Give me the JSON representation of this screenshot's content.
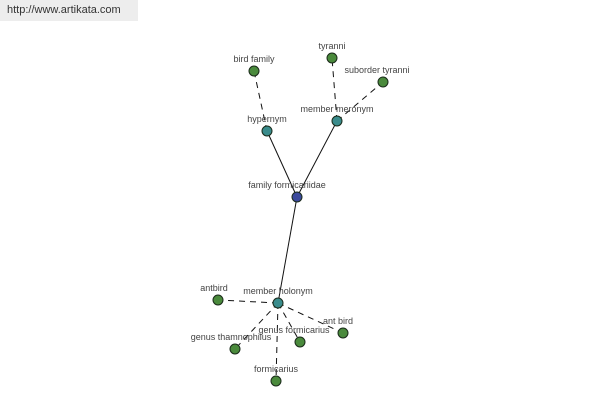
{
  "source_url": "http://www.artikata.com",
  "colors": {
    "leaf": "#4a8a3c",
    "relation": "#3a8c8c",
    "root": "#3b4a9c",
    "edge": "#111111"
  },
  "nodes": [
    {
      "id": "root",
      "label": "family formicariidae",
      "type": "root"
    },
    {
      "id": "hypernym",
      "label": "hypernym",
      "type": "relation"
    },
    {
      "id": "meronym",
      "label": "member meronym",
      "type": "relation"
    },
    {
      "id": "holonym",
      "label": "member holonym",
      "type": "relation"
    },
    {
      "id": "birdfamily",
      "label": "bird family",
      "type": "leaf"
    },
    {
      "id": "tyranni",
      "label": "tyranni",
      "type": "leaf"
    },
    {
      "id": "subtyranni",
      "label": "suborder tyranni",
      "type": "leaf"
    },
    {
      "id": "antbird",
      "label": "antbird",
      "type": "leaf"
    },
    {
      "id": "thamnophilus",
      "label": "genus thamnophilus",
      "type": "leaf"
    },
    {
      "id": "genformicarius",
      "label": "genus formicarius",
      "type": "leaf"
    },
    {
      "id": "antbird2",
      "label": "ant bird",
      "type": "leaf"
    },
    {
      "id": "formicarius",
      "label": "formicarius",
      "type": "leaf"
    }
  ],
  "edges": [
    {
      "from": "root",
      "to": "hypernym",
      "style": "solid"
    },
    {
      "from": "root",
      "to": "meronym",
      "style": "solid"
    },
    {
      "from": "root",
      "to": "holonym",
      "style": "solid"
    },
    {
      "from": "hypernym",
      "to": "birdfamily",
      "style": "dashed"
    },
    {
      "from": "meronym",
      "to": "tyranni",
      "style": "dashed"
    },
    {
      "from": "meronym",
      "to": "subtyranni",
      "style": "dashed"
    },
    {
      "from": "holonym",
      "to": "antbird",
      "style": "dashed"
    },
    {
      "from": "holonym",
      "to": "thamnophilus",
      "style": "dashed"
    },
    {
      "from": "holonym",
      "to": "genformicarius",
      "style": "dashed"
    },
    {
      "from": "holonym",
      "to": "antbird2",
      "style": "dashed"
    },
    {
      "from": "holonym",
      "to": "formicarius",
      "style": "dashed"
    }
  ]
}
